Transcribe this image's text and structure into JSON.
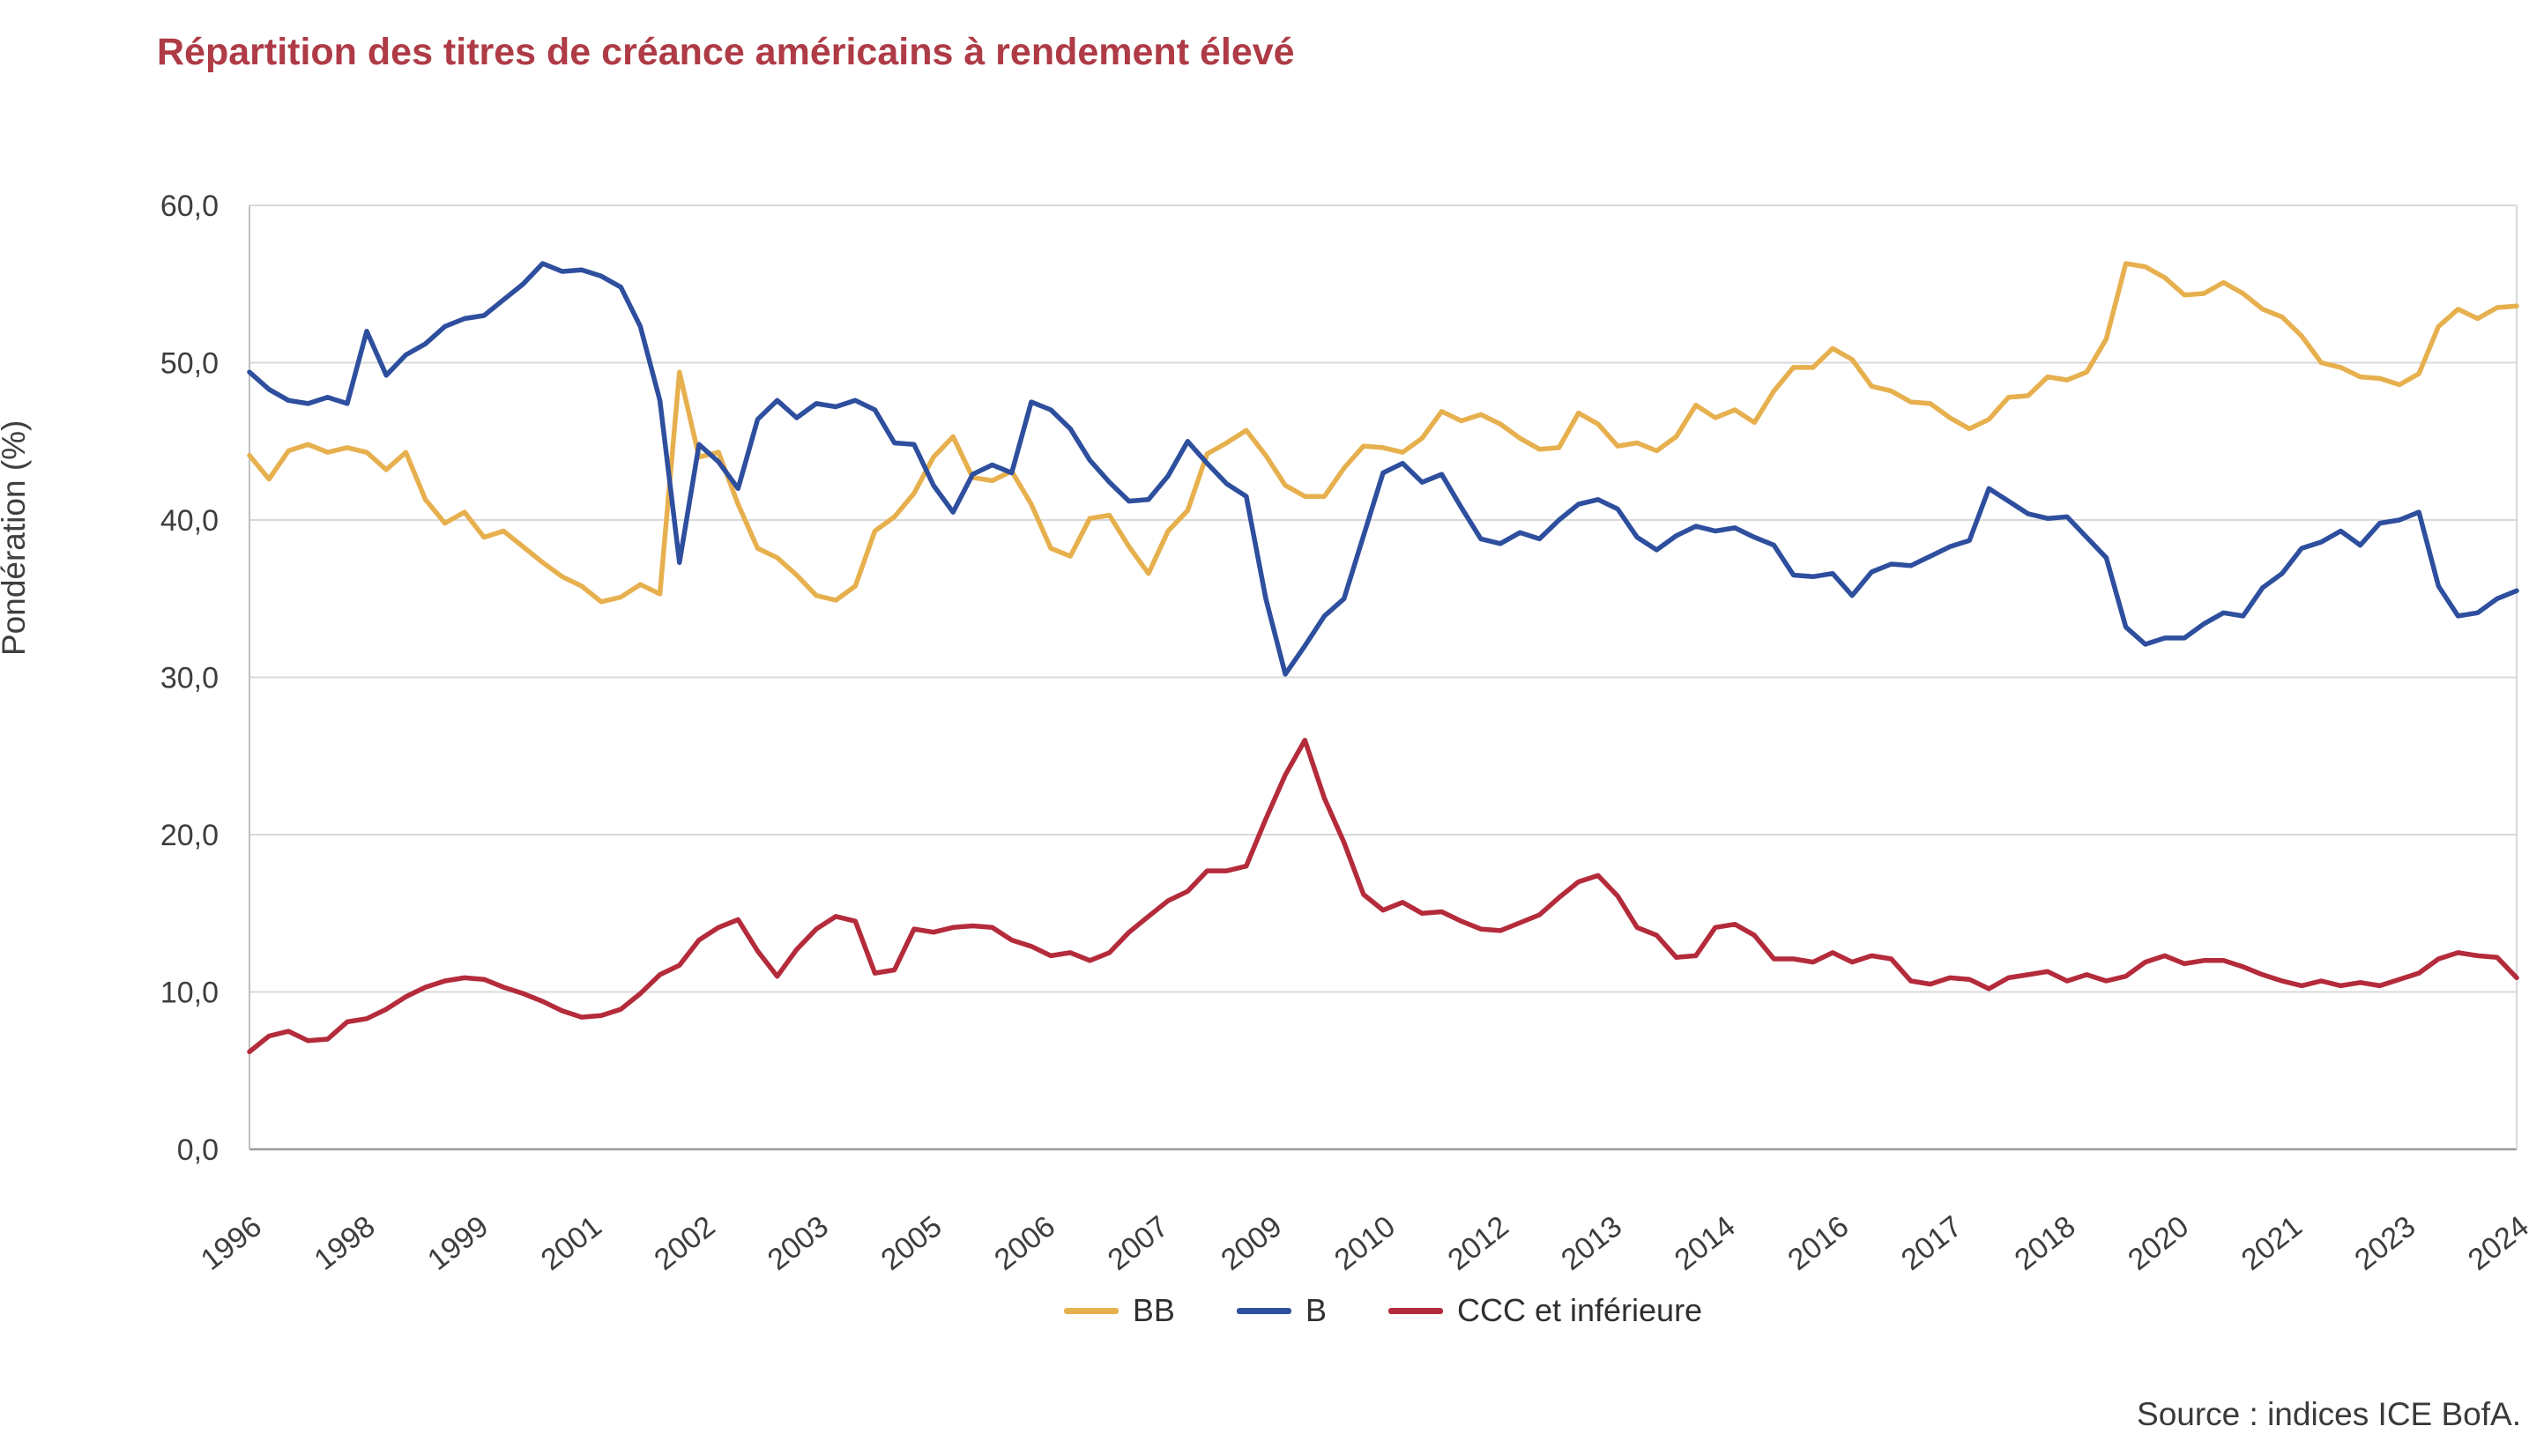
{
  "title": "Répartition des titres de créance américains à rendement élevé",
  "source": "Source : indices ICE BofA.",
  "chart_data": {
    "type": "line",
    "title": "Répartition des titres de créance américains à rendement élevé",
    "xlabel": "",
    "ylabel": "Pondération (%)",
    "ylim": [
      0,
      60
    ],
    "ytick_step": 10,
    "ytick_labels": [
      "0,0",
      "10,0",
      "20,0",
      "30,0",
      "40,0",
      "50,0",
      "60,0"
    ],
    "xtick_labels": [
      "1996",
      "1998",
      "1999",
      "2001",
      "2002",
      "2003",
      "2005",
      "2006",
      "2007",
      "2009",
      "2010",
      "2012",
      "2013",
      "2014",
      "2016",
      "2017",
      "2018",
      "2020",
      "2021",
      "2023",
      "2024"
    ],
    "x_start": 1996.0,
    "x_step": 0.25,
    "x_end": 2025.0,
    "grid": true,
    "legend_position": "bottom",
    "series": [
      {
        "name": "BB",
        "color": "#E7B04E",
        "values": [
          44.1,
          42.6,
          44.4,
          44.8,
          44.3,
          44.6,
          44.3,
          43.2,
          44.3,
          41.3,
          39.8,
          40.5,
          38.9,
          39.3,
          38.3,
          37.3,
          36.4,
          35.8,
          34.8,
          35.1,
          35.9,
          35.3,
          49.4,
          44.0,
          44.3,
          41.0,
          38.2,
          37.6,
          36.5,
          35.2,
          34.9,
          35.8,
          39.3,
          40.2,
          41.7,
          44.0,
          45.3,
          42.7,
          42.5,
          43.1,
          41.0,
          38.2,
          37.7,
          40.1,
          40.3,
          38.3,
          36.6,
          39.3,
          40.6,
          44.2,
          44.9,
          45.7,
          44.1,
          42.2,
          41.5,
          41.5,
          43.3,
          44.7,
          44.6,
          44.3,
          45.2,
          46.9,
          46.3,
          46.7,
          46.1,
          45.2,
          44.5,
          44.6,
          46.8,
          46.1,
          44.7,
          44.9,
          44.4,
          45.3,
          47.3,
          46.5,
          47.0,
          46.2,
          48.2,
          49.7,
          49.7,
          50.9,
          50.2,
          48.5,
          48.2,
          47.5,
          47.4,
          46.5,
          45.8,
          46.4,
          47.8,
          47.9,
          49.1,
          48.9,
          49.4,
          51.5,
          56.3,
          56.1,
          55.4,
          54.3,
          54.4,
          55.1,
          54.4,
          53.4,
          52.9,
          51.7,
          50.0,
          49.7,
          49.1,
          49.0,
          48.6,
          49.3,
          52.3,
          53.4,
          52.8,
          53.5,
          53.6
        ]
      },
      {
        "name": "B",
        "color": "#2E4E9E",
        "values": [
          49.4,
          48.3,
          47.6,
          47.4,
          47.8,
          47.4,
          52.0,
          49.2,
          50.5,
          51.2,
          52.3,
          52.8,
          53.0,
          54.0,
          55.0,
          56.3,
          55.8,
          55.9,
          55.5,
          54.8,
          52.3,
          47.6,
          37.3,
          44.8,
          43.7,
          42.0,
          46.4,
          47.6,
          46.5,
          47.4,
          47.2,
          47.6,
          47.0,
          44.9,
          44.8,
          42.2,
          40.5,
          42.9,
          43.5,
          43.0,
          47.5,
          47.0,
          45.8,
          43.8,
          42.4,
          41.2,
          41.3,
          42.8,
          45.0,
          43.6,
          42.3,
          41.5,
          35.0,
          30.2,
          32.0,
          33.9,
          35.0,
          39.0,
          43.0,
          43.6,
          42.4,
          42.9,
          40.8,
          38.8,
          38.5,
          39.2,
          38.8,
          40.0,
          41.0,
          41.3,
          40.7,
          38.9,
          38.1,
          39.0,
          39.6,
          39.3,
          39.5,
          38.9,
          38.4,
          36.5,
          36.4,
          36.6,
          35.2,
          36.7,
          37.2,
          37.1,
          37.7,
          38.3,
          38.7,
          42.0,
          41.2,
          40.4,
          40.1,
          40.2,
          38.9,
          37.6,
          33.2,
          32.1,
          32.5,
          32.5,
          33.4,
          34.1,
          33.9,
          35.7,
          36.6,
          38.2,
          38.6,
          39.3,
          38.4,
          39.8,
          40.0,
          40.5,
          35.8,
          33.9,
          34.1,
          35.0,
          35.5
        ]
      },
      {
        "name": "CCC et inférieure",
        "color": "#B42B3B",
        "values": [
          6.2,
          7.2,
          7.5,
          6.9,
          7.0,
          8.1,
          8.3,
          8.9,
          9.7,
          10.3,
          10.7,
          10.9,
          10.8,
          10.3,
          9.9,
          9.4,
          8.8,
          8.4,
          8.5,
          8.9,
          9.9,
          11.1,
          11.7,
          13.3,
          14.1,
          14.6,
          12.6,
          11.0,
          12.7,
          14.0,
          14.8,
          14.5,
          11.2,
          11.4,
          14.0,
          13.8,
          14.1,
          14.2,
          14.1,
          13.3,
          12.9,
          12.3,
          12.5,
          12.0,
          12.5,
          13.8,
          14.8,
          15.8,
          16.4,
          17.7,
          17.7,
          18.0,
          21.0,
          23.8,
          26.0,
          22.3,
          19.5,
          16.2,
          15.2,
          15.7,
          15.0,
          15.1,
          14.5,
          14.0,
          13.9,
          14.4,
          14.9,
          16.0,
          17.0,
          17.4,
          16.1,
          14.1,
          13.6,
          12.2,
          12.3,
          14.1,
          14.3,
          13.6,
          12.1,
          12.1,
          11.9,
          12.5,
          11.9,
          12.3,
          12.1,
          10.7,
          10.5,
          10.9,
          10.8,
          10.2,
          10.9,
          11.1,
          11.3,
          10.7,
          11.1,
          10.7,
          11.0,
          11.9,
          12.3,
          11.8,
          12.0,
          12.0,
          11.6,
          11.1,
          10.7,
          10.4,
          10.7,
          10.4,
          10.6,
          10.4,
          10.8,
          11.2,
          12.1,
          12.5,
          12.3,
          12.2,
          10.9
        ]
      }
    ],
    "plot_colors": {
      "gridline": "#d9d9d9",
      "axis_line": "#bfbfbf",
      "x_axis_line": "#9b9b9b",
      "tick_text": "#3d3d3d"
    }
  }
}
